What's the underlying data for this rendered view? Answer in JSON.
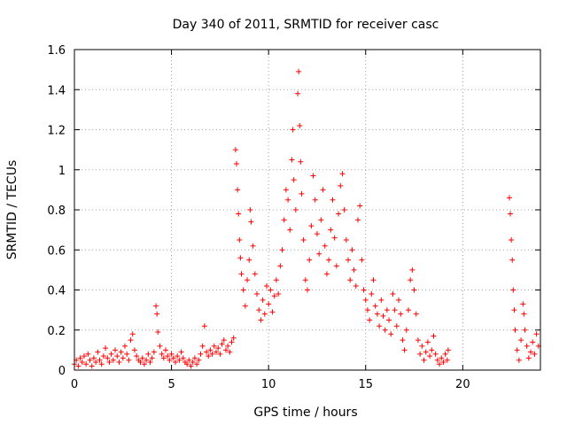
{
  "chart_data": {
    "type": "scatter",
    "title": "Day 340 of 2011, SRMTID for receiver casc",
    "xlabel": "GPS time / hours",
    "ylabel": "SRMTID / TECUs",
    "xlim": [
      0,
      24
    ],
    "ylim": [
      0,
      1.6
    ],
    "xticks": [
      "0",
      "5",
      "10",
      "15",
      "20"
    ],
    "yticks": [
      "0",
      "0.2",
      "0.4",
      "0.6",
      "0.8",
      "1",
      "1.2",
      "1.4",
      "1.6"
    ],
    "grid": true,
    "marker": "+",
    "series": [
      {
        "name": "SRMTID",
        "color": "#ff0000",
        "points": [
          [
            0.0,
            0.03
          ],
          [
            0.1,
            0.05
          ],
          [
            0.2,
            0.02
          ],
          [
            0.3,
            0.06
          ],
          [
            0.4,
            0.04
          ],
          [
            0.5,
            0.07
          ],
          [
            0.6,
            0.03
          ],
          [
            0.7,
            0.08
          ],
          [
            0.8,
            0.05
          ],
          [
            0.9,
            0.02
          ],
          [
            1.0,
            0.06
          ],
          [
            1.1,
            0.04
          ],
          [
            1.2,
            0.09
          ],
          [
            1.3,
            0.05
          ],
          [
            1.4,
            0.03
          ],
          [
            1.5,
            0.07
          ],
          [
            1.6,
            0.11
          ],
          [
            1.7,
            0.06
          ],
          [
            1.8,
            0.04
          ],
          [
            1.9,
            0.08
          ],
          [
            2.0,
            0.05
          ],
          [
            2.1,
            0.1
          ],
          [
            2.2,
            0.07
          ],
          [
            2.3,
            0.04
          ],
          [
            2.4,
            0.09
          ],
          [
            2.5,
            0.06
          ],
          [
            2.6,
            0.12
          ],
          [
            2.7,
            0.08
          ],
          [
            2.8,
            0.05
          ],
          [
            2.9,
            0.15
          ],
          [
            3.0,
            0.18
          ],
          [
            3.1,
            0.1
          ],
          [
            3.2,
            0.07
          ],
          [
            3.3,
            0.05
          ],
          [
            3.4,
            0.04
          ],
          [
            3.5,
            0.06
          ],
          [
            3.6,
            0.03
          ],
          [
            3.7,
            0.05
          ],
          [
            3.8,
            0.08
          ],
          [
            3.9,
            0.04
          ],
          [
            4.0,
            0.06
          ],
          [
            4.1,
            0.09
          ],
          [
            4.2,
            0.32
          ],
          [
            4.25,
            0.28
          ],
          [
            4.3,
            0.19
          ],
          [
            4.4,
            0.12
          ],
          [
            4.5,
            0.08
          ],
          [
            4.6,
            0.06
          ],
          [
            4.7,
            0.1
          ],
          [
            4.8,
            0.07
          ],
          [
            4.9,
            0.05
          ],
          [
            5.0,
            0.08
          ],
          [
            5.1,
            0.06
          ],
          [
            5.2,
            0.04
          ],
          [
            5.3,
            0.07
          ],
          [
            5.4,
            0.05
          ],
          [
            5.5,
            0.09
          ],
          [
            5.6,
            0.06
          ],
          [
            5.7,
            0.04
          ],
          [
            5.8,
            0.03
          ],
          [
            5.9,
            0.05
          ],
          [
            6.0,
            0.02
          ],
          [
            6.1,
            0.04
          ],
          [
            6.2,
            0.06
          ],
          [
            6.3,
            0.03
          ],
          [
            6.4,
            0.05
          ],
          [
            6.5,
            0.08
          ],
          [
            6.6,
            0.12
          ],
          [
            6.7,
            0.22
          ],
          [
            6.8,
            0.09
          ],
          [
            6.9,
            0.07
          ],
          [
            7.0,
            0.1
          ],
          [
            7.1,
            0.08
          ],
          [
            7.2,
            0.12
          ],
          [
            7.3,
            0.09
          ],
          [
            7.4,
            0.11
          ],
          [
            7.5,
            0.08
          ],
          [
            7.6,
            0.13
          ],
          [
            7.7,
            0.15
          ],
          [
            7.8,
            0.1
          ],
          [
            7.9,
            0.12
          ],
          [
            8.0,
            0.09
          ],
          [
            8.1,
            0.14
          ],
          [
            8.2,
            0.16
          ],
          [
            8.3,
            1.1
          ],
          [
            8.35,
            1.03
          ],
          [
            8.4,
            0.9
          ],
          [
            8.45,
            0.78
          ],
          [
            8.5,
            0.65
          ],
          [
            8.55,
            0.56
          ],
          [
            8.6,
            0.48
          ],
          [
            8.7,
            0.4
          ],
          [
            8.8,
            0.32
          ],
          [
            8.9,
            0.45
          ],
          [
            9.0,
            0.55
          ],
          [
            9.05,
            0.8
          ],
          [
            9.1,
            0.74
          ],
          [
            9.2,
            0.62
          ],
          [
            9.3,
            0.48
          ],
          [
            9.4,
            0.38
          ],
          [
            9.5,
            0.3
          ],
          [
            9.6,
            0.25
          ],
          [
            9.7,
            0.35
          ],
          [
            9.8,
            0.28
          ],
          [
            9.9,
            0.42
          ],
          [
            10.0,
            0.33
          ],
          [
            10.1,
            0.4
          ],
          [
            10.2,
            0.29
          ],
          [
            10.3,
            0.37
          ],
          [
            10.4,
            0.45
          ],
          [
            10.5,
            0.38
          ],
          [
            10.6,
            0.52
          ],
          [
            10.7,
            0.6
          ],
          [
            10.8,
            0.75
          ],
          [
            10.9,
            0.9
          ],
          [
            11.0,
            0.85
          ],
          [
            11.1,
            0.7
          ],
          [
            11.2,
            1.05
          ],
          [
            11.25,
            1.2
          ],
          [
            11.3,
            0.95
          ],
          [
            11.4,
            0.8
          ],
          [
            11.5,
            1.38
          ],
          [
            11.55,
            1.49
          ],
          [
            11.6,
            1.22
          ],
          [
            11.65,
            1.04
          ],
          [
            11.7,
            0.88
          ],
          [
            11.8,
            0.65
          ],
          [
            11.9,
            0.45
          ],
          [
            12.0,
            0.4
          ],
          [
            12.1,
            0.55
          ],
          [
            12.2,
            0.72
          ],
          [
            12.3,
            0.97
          ],
          [
            12.4,
            0.85
          ],
          [
            12.5,
            0.68
          ],
          [
            12.6,
            0.58
          ],
          [
            12.7,
            0.75
          ],
          [
            12.8,
            0.9
          ],
          [
            12.9,
            0.62
          ],
          [
            13.0,
            0.48
          ],
          [
            13.1,
            0.55
          ],
          [
            13.2,
            0.7
          ],
          [
            13.3,
            0.85
          ],
          [
            13.4,
            0.66
          ],
          [
            13.5,
            0.52
          ],
          [
            13.6,
            0.78
          ],
          [
            13.7,
            0.92
          ],
          [
            13.8,
            0.98
          ],
          [
            13.9,
            0.8
          ],
          [
            14.0,
            0.65
          ],
          [
            14.1,
            0.55
          ],
          [
            14.2,
            0.45
          ],
          [
            14.3,
            0.6
          ],
          [
            14.4,
            0.5
          ],
          [
            14.5,
            0.42
          ],
          [
            14.6,
            0.75
          ],
          [
            14.7,
            0.82
          ],
          [
            14.8,
            0.55
          ],
          [
            14.9,
            0.4
          ],
          [
            15.0,
            0.35
          ],
          [
            15.1,
            0.3
          ],
          [
            15.2,
            0.25
          ],
          [
            15.3,
            0.38
          ],
          [
            15.4,
            0.45
          ],
          [
            15.5,
            0.32
          ],
          [
            15.6,
            0.28
          ],
          [
            15.7,
            0.22
          ],
          [
            15.8,
            0.35
          ],
          [
            15.9,
            0.27
          ],
          [
            16.0,
            0.2
          ],
          [
            16.1,
            0.3
          ],
          [
            16.2,
            0.25
          ],
          [
            16.3,
            0.18
          ],
          [
            16.4,
            0.38
          ],
          [
            16.5,
            0.3
          ],
          [
            16.6,
            0.22
          ],
          [
            16.7,
            0.35
          ],
          [
            16.8,
            0.28
          ],
          [
            16.9,
            0.15
          ],
          [
            17.0,
            0.1
          ],
          [
            17.1,
            0.2
          ],
          [
            17.2,
            0.3
          ],
          [
            17.3,
            0.45
          ],
          [
            17.4,
            0.5
          ],
          [
            17.5,
            0.4
          ],
          [
            17.6,
            0.28
          ],
          [
            17.7,
            0.15
          ],
          [
            17.8,
            0.08
          ],
          [
            17.9,
            0.12
          ],
          [
            18.0,
            0.05
          ],
          [
            18.1,
            0.09
          ],
          [
            18.2,
            0.14
          ],
          [
            18.3,
            0.07
          ],
          [
            18.4,
            0.1
          ],
          [
            18.5,
            0.17
          ],
          [
            18.6,
            0.08
          ],
          [
            18.7,
            0.05
          ],
          [
            18.8,
            0.03
          ],
          [
            18.9,
            0.06
          ],
          [
            19.0,
            0.04
          ],
          [
            19.1,
            0.08
          ],
          [
            19.2,
            0.05
          ],
          [
            19.25,
            0.1
          ],
          [
            22.4,
            0.86
          ],
          [
            22.45,
            0.78
          ],
          [
            22.5,
            0.65
          ],
          [
            22.55,
            0.55
          ],
          [
            22.6,
            0.4
          ],
          [
            22.65,
            0.3
          ],
          [
            22.7,
            0.2
          ],
          [
            22.8,
            0.1
          ],
          [
            22.9,
            0.05
          ],
          [
            23.0,
            0.15
          ],
          [
            23.1,
            0.33
          ],
          [
            23.15,
            0.28
          ],
          [
            23.2,
            0.2
          ],
          [
            23.3,
            0.12
          ],
          [
            23.4,
            0.06
          ],
          [
            23.5,
            0.09
          ],
          [
            23.6,
            0.14
          ],
          [
            23.7,
            0.08
          ],
          [
            23.8,
            0.18
          ],
          [
            23.9,
            0.12
          ]
        ]
      }
    ]
  }
}
